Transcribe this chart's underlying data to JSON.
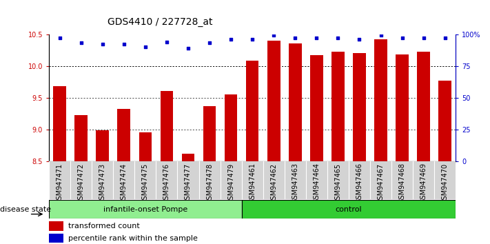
{
  "title": "GDS4410 / 227728_at",
  "samples": [
    "GSM947471",
    "GSM947472",
    "GSM947473",
    "GSM947474",
    "GSM947475",
    "GSM947476",
    "GSM947477",
    "GSM947478",
    "GSM947479",
    "GSM947461",
    "GSM947462",
    "GSM947463",
    "GSM947464",
    "GSM947465",
    "GSM947466",
    "GSM947467",
    "GSM947468",
    "GSM947469",
    "GSM947470"
  ],
  "bar_values": [
    9.68,
    9.22,
    8.98,
    9.32,
    8.95,
    9.6,
    8.62,
    9.36,
    9.55,
    10.08,
    10.4,
    10.35,
    10.17,
    10.22,
    10.2,
    10.42,
    10.18,
    10.22,
    9.77
  ],
  "percentile_values_pct": [
    97,
    93,
    92,
    92,
    90,
    94,
    89,
    93,
    96,
    96,
    99,
    97,
    97,
    97,
    96,
    99,
    97,
    97,
    97
  ],
  "n_pompe": 9,
  "n_control": 10,
  "groups": [
    {
      "label": "infantile-onset Pompe",
      "color": "#90ee90"
    },
    {
      "label": "control",
      "color": "#33cc33"
    }
  ],
  "disease_state_label": "disease state",
  "bar_color": "#cc0000",
  "percentile_color": "#0000cc",
  "ylim_left": [
    8.5,
    10.5
  ],
  "yticks_left": [
    8.5,
    9.0,
    9.5,
    10.0,
    10.5
  ],
  "ylim_right": [
    0,
    100
  ],
  "yticks_right": [
    0,
    25,
    50,
    75,
    100
  ],
  "yticklabels_right": [
    "0",
    "25",
    "50",
    "75",
    "100%"
  ],
  "grid_values": [
    9.0,
    9.5,
    10.0
  ],
  "legend_bar_label": "transformed count",
  "legend_pct_label": "percentile rank within the sample",
  "bar_width": 0.6,
  "title_fontsize": 10,
  "tick_fontsize": 7,
  "label_fontsize": 8,
  "group_label_fontsize": 8,
  "xtick_bg_color": "#d3d3d3"
}
